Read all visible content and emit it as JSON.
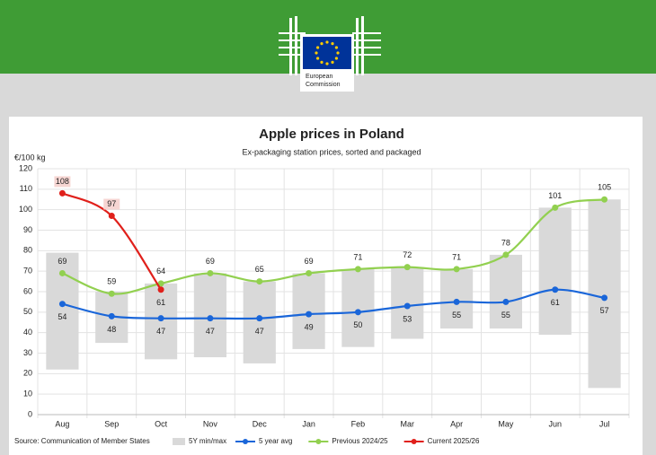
{
  "header": {
    "logo_text": [
      "European",
      "Commission"
    ]
  },
  "chart_data": {
    "type": "line",
    "title": "Apple prices in Poland",
    "subtitle": "Ex-packaging station prices, sorted and packaged",
    "y_label": "€/100 kg",
    "source": "Source: Communication of Member States",
    "categories": [
      "Aug",
      "Sep",
      "Oct",
      "Nov",
      "Dec",
      "Jan",
      "Feb",
      "Mar",
      "Apr",
      "May",
      "Jun",
      "Jul"
    ],
    "ylim": [
      0,
      120
    ],
    "yticks": [
      0,
      10,
      20,
      30,
      40,
      50,
      60,
      70,
      80,
      90,
      100,
      110,
      120
    ],
    "grid": true,
    "range": {
      "name": "5Y min/max",
      "color": "#d9d9d9",
      "low": [
        22,
        35,
        27,
        28,
        25,
        32,
        33,
        37,
        42,
        42,
        39,
        13
      ],
      "high": [
        79,
        60,
        64,
        69,
        65,
        69,
        71,
        72,
        71,
        78,
        101,
        105
      ]
    },
    "series": [
      {
        "name": "5 year avg",
        "color": "#1a66d9",
        "label_pos": "below",
        "values": [
          54,
          48,
          47,
          47,
          47,
          49,
          50,
          53,
          55,
          55,
          61,
          57
        ]
      },
      {
        "name": "Previous 2024/25",
        "color": "#92d050",
        "label_pos": "above",
        "values": [
          69,
          59,
          64,
          69,
          65,
          69,
          71,
          72,
          71,
          78,
          101,
          105
        ]
      },
      {
        "name": "Current 2025/26",
        "color": "#e0201b",
        "label_pos": "above",
        "values": [
          108,
          97,
          61,
          null,
          null,
          null,
          null,
          null,
          null,
          null,
          null,
          null
        ]
      }
    ]
  }
}
